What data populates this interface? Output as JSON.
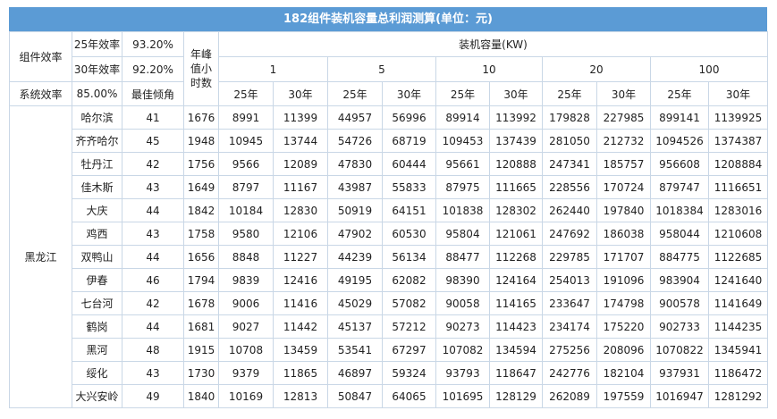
{
  "title": "182组件装机容量总利润测算(单位：元)",
  "header": {
    "module_efficiency": "组件效率",
    "eff25_label": "25年效率",
    "eff25": "93.20%",
    "eff30_label": "30年效率",
    "eff30": "92.20%",
    "system_efficiency": "系统效率",
    "system_value": "85.00%",
    "best_tilt": "最佳倾角",
    "peak_hours": "年峰值小时数",
    "capacity": "装机容量(KW)",
    "capacities": [
      1,
      5,
      10,
      20,
      100
    ],
    "years": [
      "25年",
      "30年"
    ]
  },
  "province": "黑龙江",
  "rows": [
    [
      "哈尔滨",
      41,
      1676,
      8991,
      11399,
      44957,
      56996,
      89914,
      113992,
      179828,
      227985,
      899141,
      1139925
    ],
    [
      "齐齐哈尔",
      45,
      1948,
      10945,
      13744,
      54726,
      68719,
      109453,
      137439,
      281050,
      212732,
      1094526,
      1374387
    ],
    [
      "牡丹江",
      42,
      1756,
      9566,
      12089,
      47830,
      60444,
      95661,
      120888,
      247341,
      185757,
      956608,
      1208884
    ],
    [
      "佳木斯",
      43,
      1649,
      8797,
      11167,
      43987,
      55833,
      87975,
      111665,
      228556,
      170724,
      879747,
      1116651
    ],
    [
      "大庆",
      44,
      1842,
      10184,
      12830,
      50919,
      64151,
      101838,
      128302,
      262440,
      197840,
      1018384,
      1283016
    ],
    [
      "鸡西",
      43,
      1758,
      9580,
      12106,
      47902,
      60530,
      95804,
      121061,
      247692,
      186038,
      958044,
      1210608
    ],
    [
      "双鸭山",
      44,
      1656,
      8848,
      11227,
      44239,
      56134,
      88477,
      112268,
      229785,
      171707,
      884775,
      1122685
    ],
    [
      "伊春",
      46,
      1794,
      9839,
      12416,
      49195,
      62082,
      98390,
      124164,
      254013,
      191096,
      983904,
      1241640
    ],
    [
      "七台河",
      42,
      1678,
      9006,
      11416,
      45029,
      57082,
      90058,
      114165,
      233647,
      174798,
      900578,
      1141649
    ],
    [
      "鹤岗",
      44,
      1681,
      9027,
      11442,
      45137,
      57212,
      90273,
      114423,
      234174,
      175220,
      902733,
      1144235
    ],
    [
      "黑河",
      48,
      1915,
      10708,
      13459,
      53541,
      67297,
      107082,
      134594,
      275256,
      208096,
      1070822,
      1345941
    ],
    [
      "绥化",
      43,
      1730,
      9379,
      11865,
      46897,
      59324,
      93793,
      118647,
      242776,
      182104,
      937931,
      1186472
    ],
    [
      "大兴安岭",
      49,
      1840,
      10169,
      12813,
      50847,
      64065,
      101695,
      128129,
      262089,
      197559,
      1016947,
      1281292
    ]
  ]
}
